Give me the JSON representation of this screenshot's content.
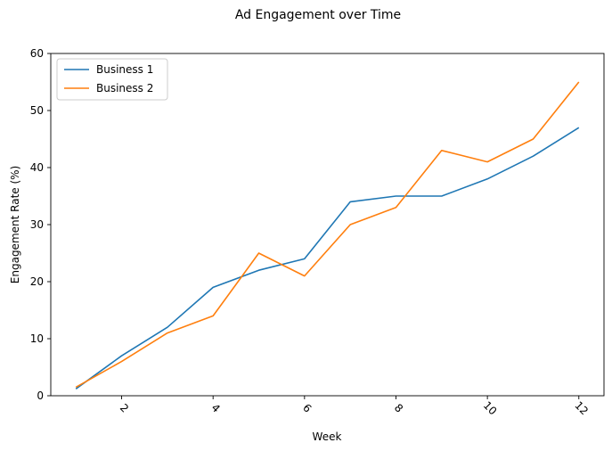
{
  "chart_data": {
    "type": "line",
    "title": "Ad Engagement over Time",
    "xlabel": "Week",
    "ylabel": "Engagement Rate (%)",
    "x": [
      1,
      2,
      3,
      4,
      5,
      6,
      7,
      8,
      9,
      10,
      11,
      12
    ],
    "xlim": [
      0.45,
      12.55
    ],
    "ylim": [
      0,
      60
    ],
    "x_ticks": [
      2,
      4,
      6,
      8,
      10,
      12
    ],
    "x_tick_rotation": 45,
    "y_ticks": [
      0,
      10,
      20,
      30,
      40,
      50,
      60
    ],
    "grid": false,
    "legend_position": "upper-left",
    "series": [
      {
        "name": "Business 1",
        "color": "#1f77b4",
        "values": [
          1.2,
          7,
          12,
          19,
          22,
          24,
          34,
          35,
          35,
          38,
          42,
          47
        ]
      },
      {
        "name": "Business 2",
        "color": "#ff7f0e",
        "values": [
          1.5,
          6,
          11,
          14,
          25,
          21,
          30,
          33,
          43,
          41,
          45,
          55
        ]
      }
    ]
  }
}
